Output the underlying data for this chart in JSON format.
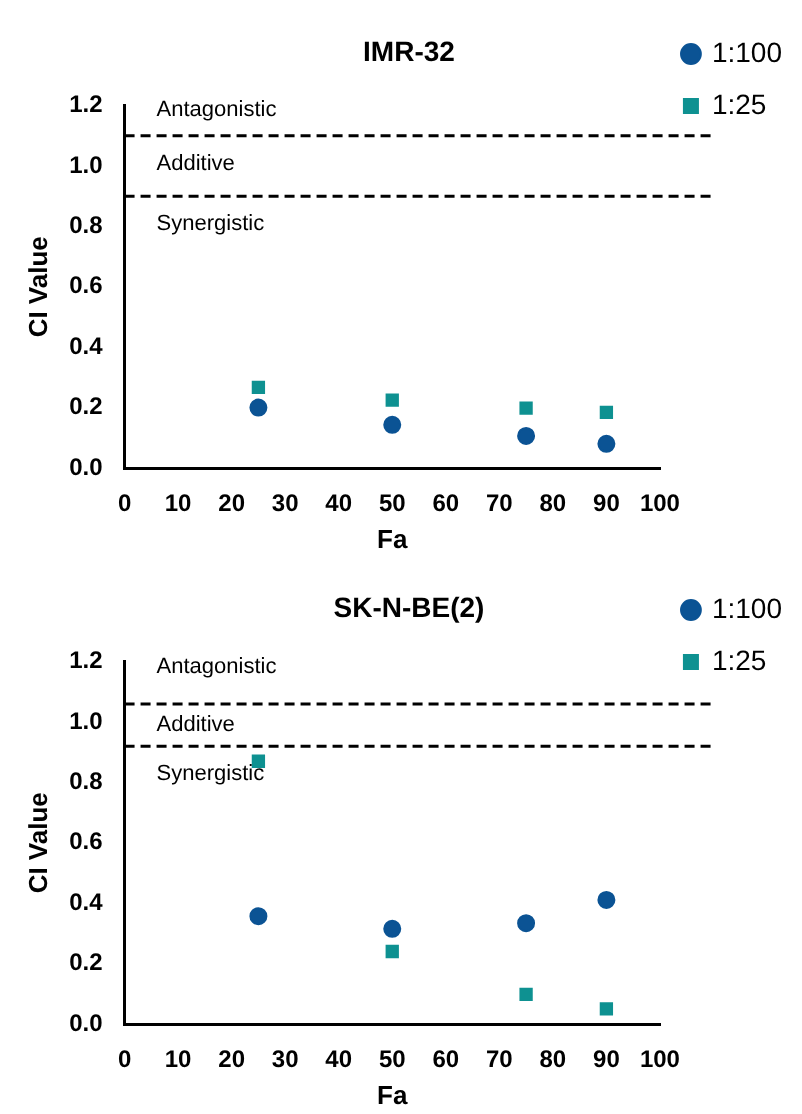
{
  "chart_data": [
    {
      "type": "scatter",
      "title": "IMR-32",
      "xlabel": "Fa",
      "ylabel": "CI Value",
      "x": [
        25,
        50,
        75,
        90
      ],
      "series": [
        {
          "name": "1:100",
          "color": "#0b5394",
          "marker": "circle",
          "values": [
            0.2,
            0.143,
            0.106,
            0.08
          ]
        },
        {
          "name": "1:25",
          "color": "#0e9191",
          "marker": "square",
          "values": [
            0.267,
            0.225,
            0.198,
            0.184
          ]
        }
      ],
      "xlim": [
        0,
        100
      ],
      "xticks": [
        0,
        10,
        20,
        30,
        40,
        50,
        60,
        70,
        80,
        90,
        100
      ],
      "ylim": [
        0,
        1.2
      ],
      "yticks": [
        {
          "value": 0,
          "label": "0.0"
        },
        {
          "value": 0.2,
          "label": "0.2"
        },
        {
          "value": 0.4,
          "label": "0.4"
        },
        {
          "value": 0.6,
          "label": "0.6"
        },
        {
          "value": 0.8,
          "label": "0.8"
        },
        {
          "value": 1,
          "label": "1.0"
        },
        {
          "value": 1.2,
          "label": "1.2"
        }
      ],
      "ref_lines": [
        {
          "axis": "y",
          "value": 1.1,
          "color": "#000000",
          "line_style": "dashed"
        },
        {
          "axis": "y",
          "value": 0.9,
          "color": "#000000",
          "line_style": "dashed"
        }
      ],
      "annotations": [
        "Antagonistic",
        "Additive",
        "Synergistic"
      ],
      "grid": false,
      "legend": "top right"
    },
    {
      "type": "scatter",
      "title": "SK-N-BE(2)",
      "xlabel": "Fa",
      "ylabel": "CI Value",
      "x": [
        25,
        50,
        75,
        90
      ],
      "series": [
        {
          "name": "1:100",
          "color": "#0b5394",
          "marker": "circle",
          "values": [
            0.357,
            0.315,
            0.334,
            0.411
          ]
        },
        {
          "name": "1:25",
          "color": "#0e9191",
          "marker": "square",
          "values": [
            0.87,
            0.24,
            0.098,
            0.05
          ]
        }
      ],
      "xlim": [
        0,
        100
      ],
      "xticks": [
        0,
        10,
        20,
        30,
        40,
        50,
        60,
        70,
        80,
        90,
        100
      ],
      "ylim": [
        0,
        1.2
      ],
      "yticks": [
        {
          "value": 0,
          "label": "0.0"
        },
        {
          "value": 0.2,
          "label": "0.2"
        },
        {
          "value": 0.4,
          "label": "0.4"
        },
        {
          "value": 0.6,
          "label": "0.6"
        },
        {
          "value": 0.8,
          "label": "0.8"
        },
        {
          "value": 1,
          "label": "1.0"
        },
        {
          "value": 1.2,
          "label": "1.2"
        }
      ],
      "ref_lines": [
        {
          "axis": "y",
          "value": 1.06,
          "color": "#000000",
          "line_style": "dashed"
        },
        {
          "axis": "y",
          "value": 0.92,
          "color": "#000000",
          "line_style": "dashed"
        }
      ],
      "annotations": [
        "Antagonistic",
        "Additive",
        "Synergistic"
      ],
      "grid": false,
      "legend": "top right"
    }
  ]
}
